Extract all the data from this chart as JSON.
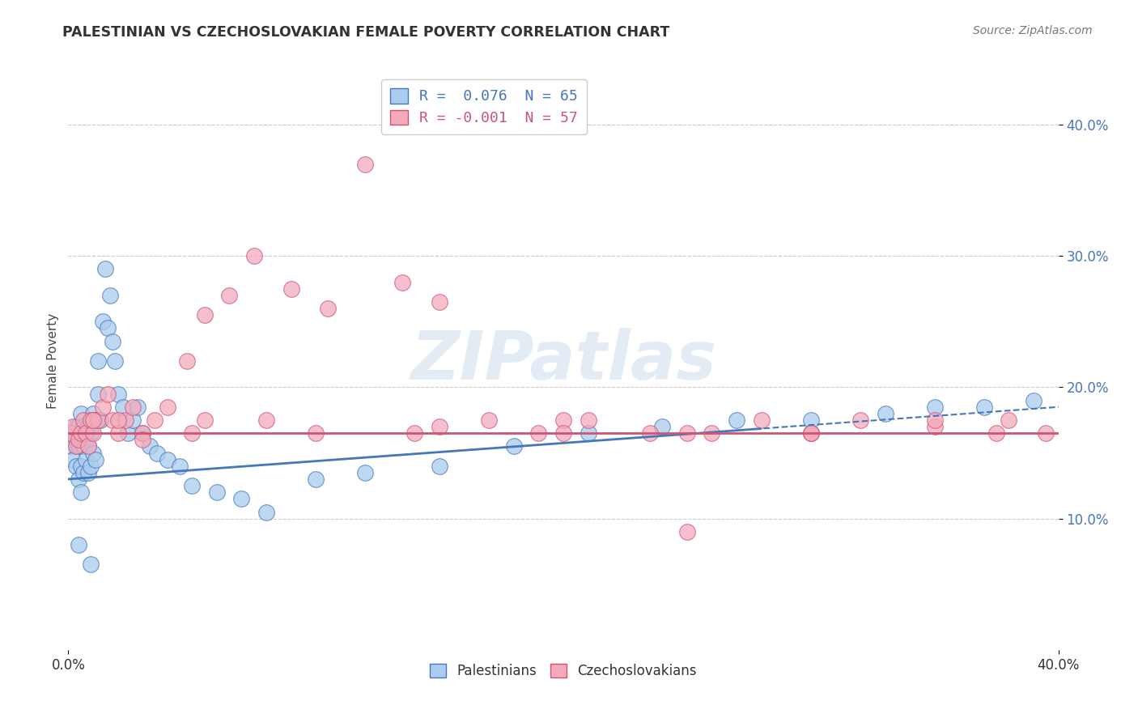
{
  "title": "PALESTINIAN VS CZECHOSLOVAKIAN FEMALE POVERTY CORRELATION CHART",
  "source": "Source: ZipAtlas.com",
  "ylabel": "Female Poverty",
  "ytick_vals": [
    0.1,
    0.2,
    0.3,
    0.4
  ],
  "ytick_labels": [
    "10.0%",
    "20.0%",
    "30.0%",
    "40.0%"
  ],
  "xtick_vals": [
    0.0,
    0.4
  ],
  "xtick_labels": [
    "0.0%",
    "40.0%"
  ],
  "xlim": [
    0.0,
    0.4
  ],
  "ylim": [
    0.0,
    0.44
  ],
  "legend1_label": "R =  0.076  N = 65",
  "legend2_label": "R = -0.001  N = 57",
  "group1_color": "#aaccee",
  "group2_color": "#f4aabb",
  "group1_name": "Palestinians",
  "group2_name": "Czechoslovakians",
  "trend1_color": "#4477bb",
  "trend2_color": "#cc5577",
  "watermark_text": "ZIPatlas",
  "background_color": "#ffffff",
  "grid_color": "#cccccc",
  "palestinians_x": [
    0.001,
    0.002,
    0.002,
    0.003,
    0.003,
    0.003,
    0.004,
    0.004,
    0.004,
    0.005,
    0.005,
    0.005,
    0.005,
    0.006,
    0.006,
    0.006,
    0.007,
    0.007,
    0.007,
    0.008,
    0.008,
    0.008,
    0.009,
    0.009,
    0.01,
    0.01,
    0.011,
    0.011,
    0.012,
    0.012,
    0.013,
    0.014,
    0.015,
    0.016,
    0.017,
    0.018,
    0.019,
    0.02,
    0.022,
    0.024,
    0.026,
    0.028,
    0.03,
    0.033,
    0.036,
    0.04,
    0.045,
    0.05,
    0.06,
    0.07,
    0.08,
    0.1,
    0.12,
    0.15,
    0.18,
    0.21,
    0.24,
    0.27,
    0.3,
    0.33,
    0.35,
    0.37,
    0.39,
    0.004,
    0.009
  ],
  "palestinians_y": [
    0.155,
    0.16,
    0.145,
    0.17,
    0.14,
    0.16,
    0.13,
    0.155,
    0.17,
    0.12,
    0.16,
    0.14,
    0.18,
    0.155,
    0.135,
    0.17,
    0.165,
    0.145,
    0.16,
    0.155,
    0.17,
    0.135,
    0.165,
    0.14,
    0.18,
    0.15,
    0.175,
    0.145,
    0.22,
    0.195,
    0.175,
    0.25,
    0.29,
    0.245,
    0.27,
    0.235,
    0.22,
    0.195,
    0.185,
    0.165,
    0.175,
    0.185,
    0.165,
    0.155,
    0.15,
    0.145,
    0.14,
    0.125,
    0.12,
    0.115,
    0.105,
    0.13,
    0.135,
    0.14,
    0.155,
    0.165,
    0.17,
    0.175,
    0.175,
    0.18,
    0.185,
    0.185,
    0.19,
    0.08,
    0.065
  ],
  "czechoslovakians_x": [
    0.001,
    0.002,
    0.003,
    0.004,
    0.005,
    0.006,
    0.007,
    0.008,
    0.009,
    0.01,
    0.012,
    0.014,
    0.016,
    0.018,
    0.02,
    0.023,
    0.026,
    0.03,
    0.035,
    0.04,
    0.048,
    0.055,
    0.065,
    0.075,
    0.09,
    0.105,
    0.12,
    0.135,
    0.15,
    0.17,
    0.19,
    0.21,
    0.235,
    0.26,
    0.28,
    0.3,
    0.32,
    0.35,
    0.375,
    0.395,
    0.055,
    0.14,
    0.2,
    0.25,
    0.3,
    0.35,
    0.38,
    0.01,
    0.02,
    0.03,
    0.05,
    0.08,
    0.1,
    0.15,
    0.2,
    0.25,
    0.3
  ],
  "czechoslovakians_y": [
    0.165,
    0.17,
    0.155,
    0.16,
    0.165,
    0.175,
    0.165,
    0.155,
    0.175,
    0.165,
    0.175,
    0.185,
    0.195,
    0.175,
    0.165,
    0.175,
    0.185,
    0.165,
    0.175,
    0.185,
    0.22,
    0.255,
    0.27,
    0.3,
    0.275,
    0.26,
    0.37,
    0.28,
    0.265,
    0.175,
    0.165,
    0.175,
    0.165,
    0.165,
    0.175,
    0.165,
    0.175,
    0.17,
    0.165,
    0.165,
    0.175,
    0.165,
    0.175,
    0.165,
    0.165,
    0.175,
    0.175,
    0.175,
    0.175,
    0.16,
    0.165,
    0.175,
    0.165,
    0.17,
    0.165,
    0.09,
    0.165
  ]
}
